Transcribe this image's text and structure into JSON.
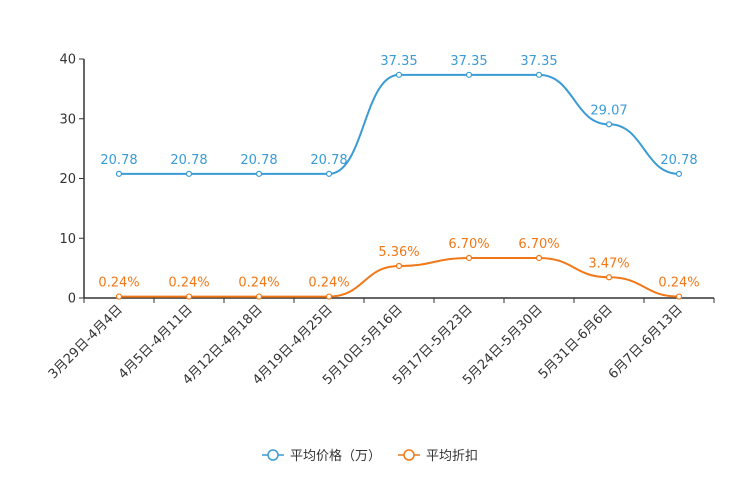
{
  "chart_data": {
    "type": "line",
    "title": "",
    "xlabel": "",
    "ylabel": "",
    "ylim": [
      0,
      40
    ],
    "yticks": [
      0,
      10,
      20,
      30,
      40
    ],
    "grid": false,
    "legend_position": "bottom-center",
    "categories": [
      "3月29日-4月4日",
      "4月5日-4月11日",
      "4月12日-4月18日",
      "4月19日-4月25日",
      "5月10日-5月16日",
      "5月17日-5月23日",
      "5月24日-5月30日",
      "5月31日-6月6日",
      "6月7日-6月13日"
    ],
    "series": [
      {
        "name": "平均价格（万）",
        "color": "#3a9bd5",
        "values": [
          20.78,
          20.78,
          20.78,
          20.78,
          37.35,
          37.35,
          37.35,
          29.07,
          20.78
        ],
        "labels": [
          "20.78",
          "20.78",
          "20.78",
          "20.78",
          "37.35",
          "37.35",
          "37.35",
          "29.07",
          "20.78"
        ]
      },
      {
        "name": "平均折扣",
        "color": "#f07818",
        "values": [
          0.24,
          0.24,
          0.24,
          0.24,
          5.36,
          6.7,
          6.7,
          3.47,
          0.24
        ],
        "labels": [
          "0.24%",
          "0.24%",
          "0.24%",
          "0.24%",
          "5.36%",
          "6.70%",
          "6.70%",
          "3.47%",
          "0.24%"
        ]
      }
    ]
  }
}
